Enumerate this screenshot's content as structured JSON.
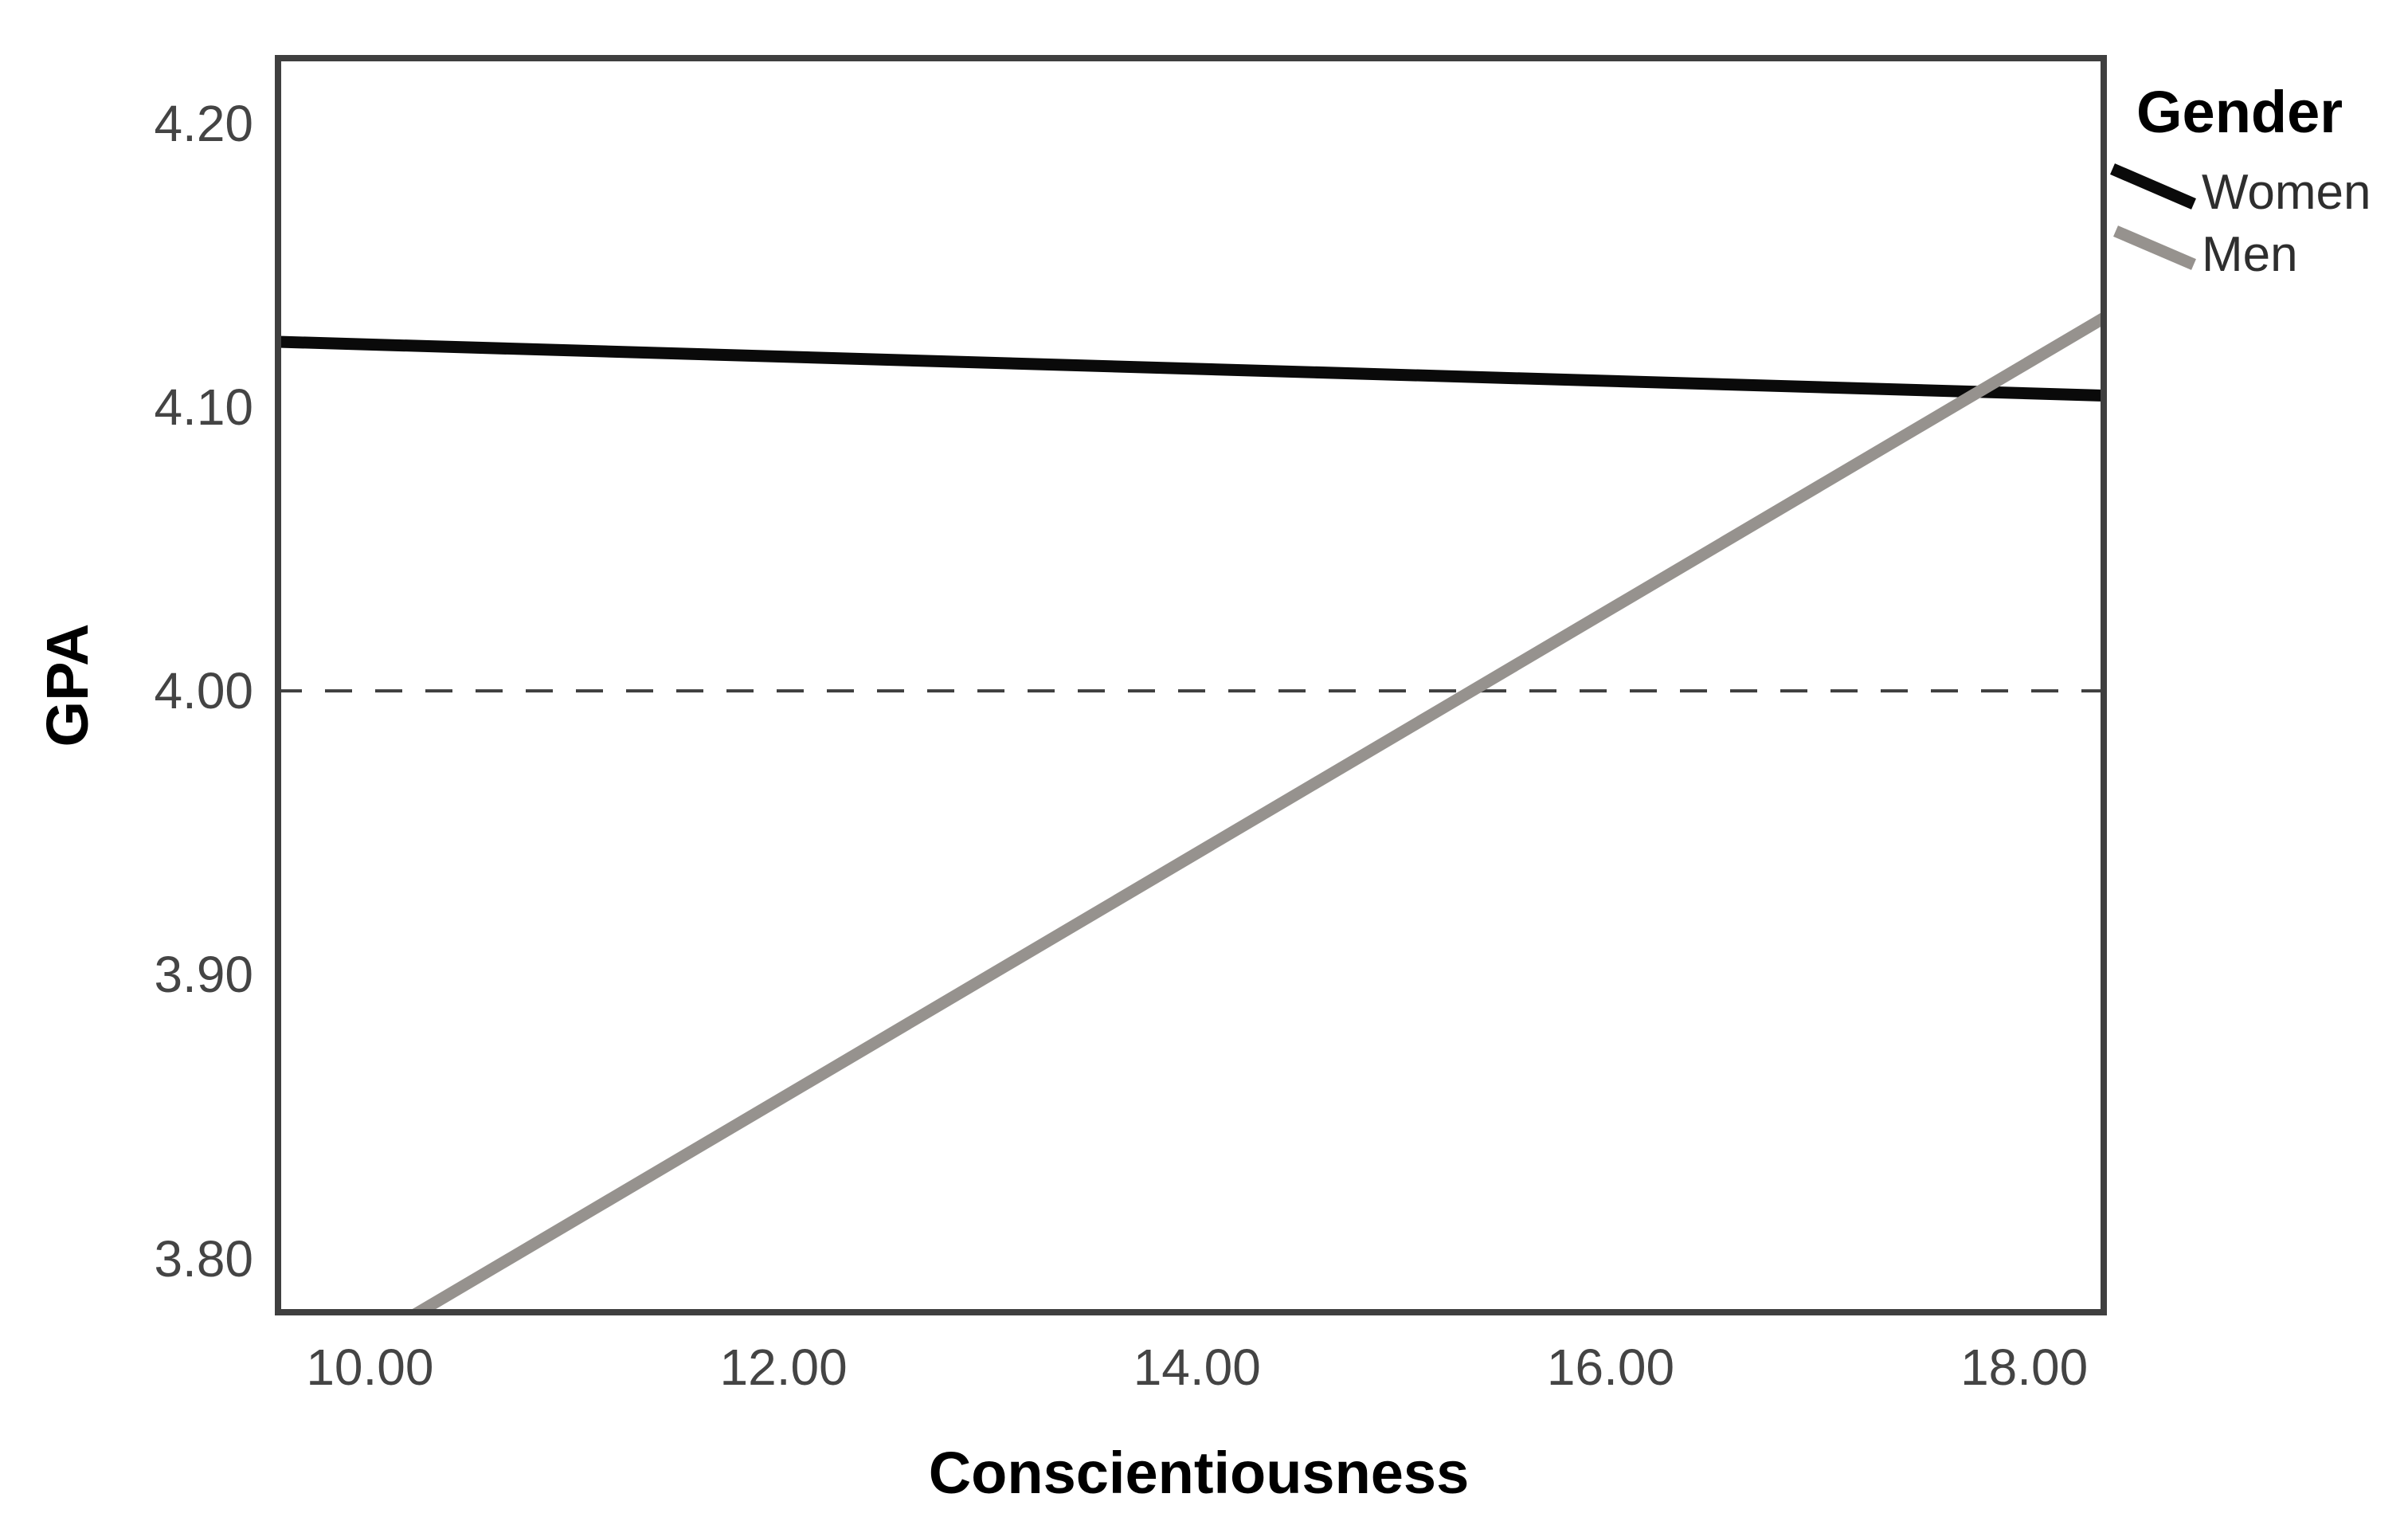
{
  "chart_data": {
    "type": "line",
    "title": "",
    "xlabel": "Conscientiousness",
    "ylabel": "GPA",
    "xlim": [
      9.54,
      18.4
    ],
    "ylim": [
      3.78,
      4.224
    ],
    "x_ticks": {
      "values": [
        10,
        12,
        14,
        16,
        18
      ],
      "labels": [
        "10.00",
        "12.00",
        "14.00",
        "16.00",
        "18.00"
      ]
    },
    "y_ticks": {
      "values": [
        3.8,
        3.9,
        4.0,
        4.1,
        4.2
      ],
      "labels": [
        "3.80",
        "3.90",
        "4.00",
        "4.10",
        "4.20"
      ]
    },
    "grid": false,
    "frame": true,
    "reference_line": {
      "axis": "y",
      "value": 4.0,
      "style": "dashed",
      "color": "#3f3f3f"
    },
    "legend": {
      "title": "Gender",
      "position": "outside-top-right",
      "entries": [
        {
          "label": "Women",
          "color": "#0a0a0a"
        },
        {
          "label": "Men",
          "color": "#96928e"
        }
      ]
    },
    "series": [
      {
        "name": "Women",
        "color": "#0a0a0a",
        "points": [
          [
            9.54,
            4.123
          ],
          [
            18.4,
            4.104
          ]
        ]
      },
      {
        "name": "Men",
        "color": "#96928e",
        "points": [
          [
            10.21,
            3.78
          ],
          [
            18.4,
            4.132
          ]
        ]
      }
    ]
  },
  "colors": {
    "background": "#ffffff",
    "frame": "#3f3f3f",
    "tick_text": "#444444",
    "axis_title_text": "#000000",
    "legend_text": "#2e2e2e"
  }
}
